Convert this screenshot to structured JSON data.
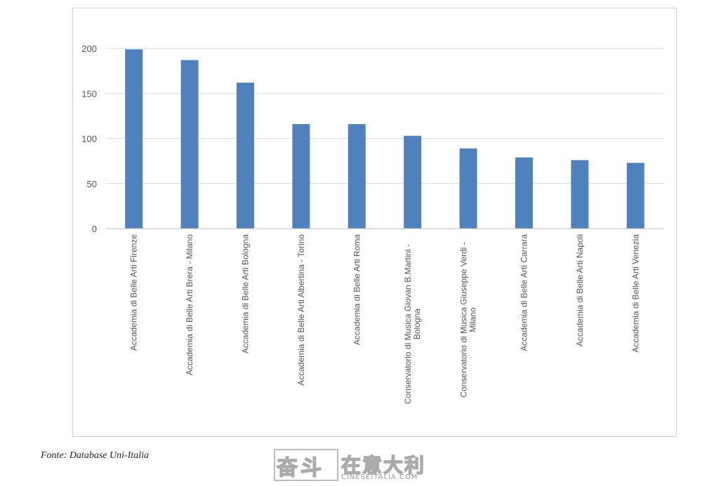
{
  "chart_data": {
    "type": "bar",
    "categories": [
      "Accademia di Belle Arti Firenze",
      "Accademia di Belle Arti Brera - Milano",
      "Accademia di Belle Arti Bologna",
      "Accademia di Belle Arti Albertina - Torino",
      "Accademia di Belle Arti Roma",
      "Conservatorio di Musica Giovan B.Martini - Bologna",
      "Conservatorio di Musica Giuseppe Verdi - Milano",
      "Accademia di Belle Arti Carrara",
      "Accademia di Belle Arti Napoli",
      "Accademia di Belle Arti Venezia"
    ],
    "values": [
      199,
      187,
      162,
      116,
      116,
      103,
      89,
      79,
      76,
      73
    ],
    "ylim": [
      0,
      200
    ],
    "yticks": [
      0,
      50,
      100,
      150,
      200
    ],
    "grid": true,
    "bar_color": "#4f81bd",
    "grid_color": "#d9d9d9"
  },
  "source_note": "Fonte: Database Uni-Italia",
  "watermark": {
    "left_text": "奋斗",
    "right_text": "在意大利",
    "url": "CINESEITALIA.COM"
  }
}
